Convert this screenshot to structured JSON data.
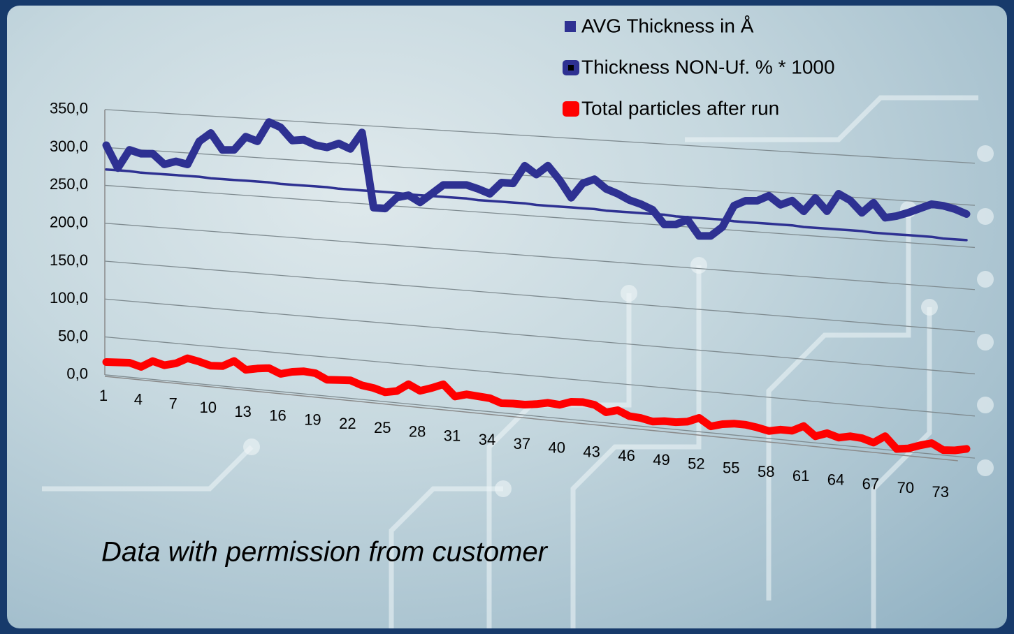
{
  "chart_data": {
    "type": "line",
    "categories": [
      "1",
      null,
      null,
      "4",
      null,
      null,
      "7",
      null,
      null,
      "10",
      null,
      null,
      "13",
      null,
      null,
      "16",
      null,
      null,
      "19",
      null,
      null,
      "22",
      null,
      null,
      "25",
      null,
      null,
      "28",
      null,
      null,
      "31",
      null,
      null,
      "34",
      null,
      null,
      "37",
      null,
      null,
      "40",
      null,
      null,
      "43",
      null,
      null,
      "46",
      null,
      null,
      "49",
      null,
      null,
      "52",
      null,
      null,
      "55",
      null,
      null,
      "58",
      null,
      null,
      "61",
      null,
      null,
      "64",
      null,
      null,
      "67",
      null,
      null,
      "70",
      null,
      null,
      "73",
      null,
      null
    ],
    "series": [
      {
        "name": "AVG Thickness in Å",
        "color": "#2e3192",
        "values": [
          271,
          271,
          271,
          270,
          270,
          270,
          270,
          270,
          270,
          269,
          269,
          269,
          269,
          269,
          269,
          268,
          268,
          268,
          268,
          268,
          267,
          267,
          267,
          267,
          267,
          267,
          266,
          266,
          266,
          266,
          266,
          266,
          265,
          265,
          265,
          265,
          265,
          264,
          264,
          264,
          264,
          264,
          264,
          263,
          263,
          263,
          263,
          263,
          263,
          262,
          262,
          262,
          262,
          262,
          261,
          261,
          261,
          261,
          261,
          261,
          260,
          260,
          260,
          260,
          260,
          260,
          259,
          259,
          259,
          259,
          259,
          259,
          258,
          258,
          258
        ]
      },
      {
        "name": "Thickness NON-Uf. % * 1000",
        "color": "#2e3192",
        "values": [
          303,
          274,
          299,
          295,
          296,
          283,
          288,
          285,
          316,
          328,
          307,
          308,
          326,
          321,
          347,
          341,
          325,
          327,
          321,
          319,
          325,
          319,
          341,
          246,
          246,
          261,
          265,
          257,
          269,
          281,
          282,
          283,
          279,
          274,
          289,
          289,
          312,
          302,
          314,
          297,
          276,
          295,
          301,
          290,
          285,
          278,
          274,
          268,
          251,
          252,
          259,
          240,
          241,
          253,
          280,
          287,
          288,
          295,
          285,
          291,
          279,
          296,
          281,
          303,
          296,
          282,
          295,
          278,
          281,
          286,
          292,
          298,
          297,
          294,
          289
        ]
      },
      {
        "name": "Total particles after run",
        "color": "#ff0000",
        "values": [
          17,
          18,
          19,
          15,
          24,
          20,
          24,
          32,
          29,
          25,
          26,
          34,
          24,
          27,
          29,
          23,
          27,
          29,
          28,
          21,
          22,
          23,
          18,
          16,
          12,
          15,
          25,
          18,
          23,
          29,
          15,
          19,
          18,
          17,
          12,
          13,
          13,
          15,
          18,
          17,
          22,
          23,
          21,
          13,
          17,
          11,
          10,
          7,
          9,
          9,
          11,
          17,
          8,
          12,
          14,
          14,
          12,
          9,
          12,
          12,
          19,
          8,
          13,
          9,
          12,
          11,
          7,
          16,
          2,
          4,
          9,
          13,
          6,
          7,
          10
        ]
      }
    ],
    "ylim": [
      0,
      350
    ],
    "yticks": [
      {
        "value": 0,
        "label": "0,0"
      },
      {
        "value": 50,
        "label": "50,0"
      },
      {
        "value": 100,
        "label": "100,0"
      },
      {
        "value": 150,
        "label": "150,0"
      },
      {
        "value": 200,
        "label": "200,0"
      },
      {
        "value": 250,
        "label": "250,0"
      },
      {
        "value": 300,
        "label": "300,0"
      },
      {
        "value": 350,
        "label": "350,0"
      }
    ],
    "grid": true,
    "legend": "top-right",
    "annotation": "Data with permission from customer"
  }
}
